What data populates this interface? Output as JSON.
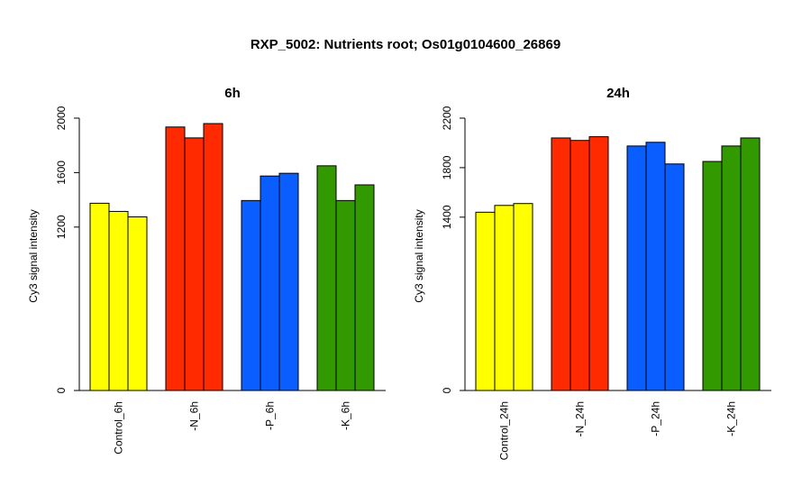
{
  "title": "RXP_5002: Nutrients root; Os01g0104600_26869",
  "chart_data": [
    {
      "type": "bar",
      "title": "6h",
      "ylabel": "Cy3 signal intensity",
      "ylim": [
        0,
        2000
      ],
      "yticks": [
        0,
        1200,
        1600,
        2000
      ],
      "categories": [
        "Control_6h",
        "-N_6h",
        "-P_6h",
        "-K_6h"
      ],
      "colors": [
        "#ffff00",
        "#ff2a00",
        "#0a5eff",
        "#339900"
      ],
      "series": [
        {
          "values": [
            1375,
            1935,
            1395,
            1650
          ]
        },
        {
          "values": [
            1315,
            1855,
            1575,
            1395
          ]
        },
        {
          "values": [
            1275,
            1960,
            1595,
            1510
          ]
        }
      ]
    },
    {
      "type": "bar",
      "title": "24h",
      "ylabel": "Cy3 signal intensity",
      "ylim": [
        0,
        2200
      ],
      "yticks": [
        0,
        1400,
        1800,
        2200
      ],
      "categories": [
        "Control_24h",
        "-N_24h",
        "-P_24h",
        "-K_24h"
      ],
      "colors": [
        "#ffff00",
        "#ff2a00",
        "#0a5eff",
        "#339900"
      ],
      "series": [
        {
          "values": [
            1440,
            2040,
            1975,
            1850
          ]
        },
        {
          "values": [
            1495,
            2020,
            2005,
            1975
          ]
        },
        {
          "values": [
            1510,
            2050,
            1830,
            2040
          ]
        }
      ]
    }
  ]
}
